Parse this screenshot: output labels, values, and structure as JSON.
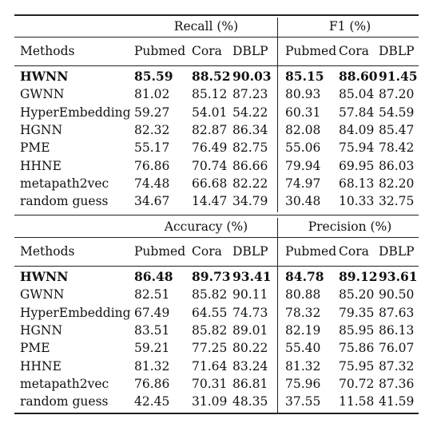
{
  "sections": [
    {
      "groups": [
        "Recall (%)",
        "F1 (%)"
      ],
      "header": [
        "Methods",
        "Pubmed",
        "Cora",
        "DBLP",
        "Pubmed",
        "Cora",
        "DBLP"
      ],
      "rows": [
        {
          "method": "HWNN",
          "bold": true,
          "values": [
            "85.59",
            "88.52",
            "90.03",
            "85.15",
            "88.60",
            "91.45"
          ]
        },
        {
          "method": "GWNN",
          "values": [
            "81.02",
            "85.12",
            "87.23",
            "80.93",
            "85.04",
            "87.20"
          ]
        },
        {
          "method": "HyperEmbedding",
          "values": [
            "59.27",
            "54.01",
            "54.22",
            "60.31",
            "57.84",
            "54.59"
          ]
        },
        {
          "method": "HGNN",
          "values": [
            "82.32",
            "82.87",
            "86.34",
            "82.08",
            "84.09",
            "85.47"
          ]
        },
        {
          "method": "PME",
          "values": [
            "55.17",
            "76.49",
            "82.75",
            "55.06",
            "75.94",
            "78.42"
          ]
        },
        {
          "method": "HHNE",
          "values": [
            "76.86",
            "70.74",
            "86.66",
            "79.94",
            "69.95",
            "86.03"
          ]
        },
        {
          "method": "metapath2vec",
          "values": [
            "74.48",
            "66.68",
            "82.22",
            "74.97",
            "68.13",
            "82.20"
          ]
        },
        {
          "method": "random guess",
          "values": [
            "34.67",
            "14.47",
            "34.79",
            "30.48",
            "10.33",
            "32.75"
          ]
        }
      ]
    },
    {
      "groups": [
        "Accuracy (%)",
        "Precision (%)"
      ],
      "header": [
        "Methods",
        "Pubmed",
        "Cora",
        "DBLP",
        "Pubmed",
        "Cora",
        "DBLP"
      ],
      "rows": [
        {
          "method": "HWNN",
          "bold": true,
          "values": [
            "86.48",
            "89.73",
            "93.41",
            "84.78",
            "89.12",
            "93.61"
          ]
        },
        {
          "method": "GWNN",
          "values": [
            "82.51",
            "85.82",
            "90.11",
            "80.88",
            "85.20",
            "90.50"
          ]
        },
        {
          "method": "HyperEmbedding",
          "values": [
            "67.49",
            "64.55",
            "74.73",
            "78.32",
            "79.35",
            "87.63"
          ]
        },
        {
          "method": "HGNN",
          "values": [
            "83.51",
            "85.82",
            "89.01",
            "82.19",
            "85.95",
            "86.13"
          ]
        },
        {
          "method": "PME",
          "values": [
            "59.21",
            "77.25",
            "80.22",
            "55.40",
            "75.86",
            "76.07"
          ]
        },
        {
          "method": "HHNE",
          "values": [
            "81.32",
            "71.64",
            "83.24",
            "81.32",
            "75.95",
            "87.32"
          ]
        },
        {
          "method": "metapath2vec",
          "values": [
            "76.86",
            "70.31",
            "86.81",
            "75.96",
            "70.72",
            "87.36"
          ]
        },
        {
          "method": "random guess",
          "values": [
            "42.45",
            "31.09",
            "48.35",
            "37.55",
            "11.58",
            "41.59"
          ]
        }
      ]
    }
  ]
}
